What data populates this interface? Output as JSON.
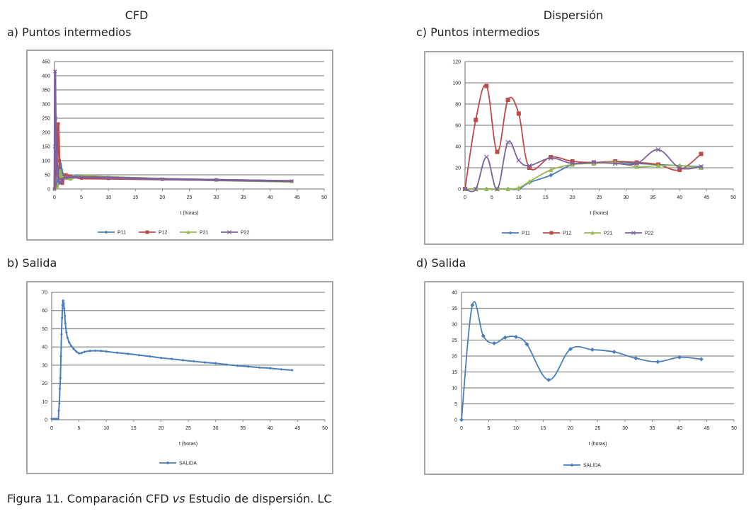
{
  "headers": {
    "cfd": "CFD",
    "dispersion": "Dispersión"
  },
  "caption": {
    "prefix": "Figura 11. Comparación CFD ",
    "italic": "vs",
    "suffix": " Estudio de dispersión. LC"
  },
  "colors": {
    "P11": "#4A7EBB",
    "P12": "#BE4B48",
    "P21": "#98B954",
    "P22": "#7D60A0",
    "SALIDA": "#4A7EBB",
    "grid": "#8c8c8c"
  },
  "chart_data": [
    {
      "id": "a",
      "panel_label": "a) Puntos intermedios",
      "type": "line",
      "xlabel": "t (horas)",
      "xlim": [
        0,
        50
      ],
      "xticks": [
        0,
        5,
        10,
        15,
        20,
        25,
        30,
        35,
        40,
        45,
        50
      ],
      "ylim": [
        0,
        450
      ],
      "yticks": [
        0,
        50,
        100,
        150,
        200,
        250,
        300,
        350,
        400,
        450
      ],
      "grid": true,
      "legend": "bottom",
      "series": [
        {
          "name": "P11",
          "marker": "diamond",
          "points": [
            [
              0,
              0
            ],
            [
              0.5,
              20
            ],
            [
              1,
              90
            ],
            [
              1.3,
              70
            ],
            [
              1.7,
              45
            ],
            [
              2.5,
              40
            ],
            [
              5,
              47
            ],
            [
              10,
              41
            ],
            [
              20,
              35
            ],
            [
              30,
              32
            ],
            [
              44,
              27
            ]
          ]
        },
        {
          "name": "P12",
          "marker": "square",
          "points": [
            [
              0,
              0
            ],
            [
              0.3,
              60
            ],
            [
              0.5,
              150
            ],
            [
              0.7,
              230
            ],
            [
              0.9,
              100
            ],
            [
              1.2,
              40
            ],
            [
              1.5,
              20
            ],
            [
              2,
              50
            ],
            [
              3,
              45
            ],
            [
              5,
              38
            ],
            [
              10,
              37
            ],
            [
              20,
              34
            ],
            [
              30,
              32
            ],
            [
              44,
              27
            ]
          ]
        },
        {
          "name": "P21",
          "marker": "triangle",
          "points": [
            [
              0,
              0
            ],
            [
              0.6,
              10
            ],
            [
              1,
              65
            ],
            [
              1.3,
              45
            ],
            [
              2,
              38
            ],
            [
              3,
              35
            ],
            [
              5,
              47
            ],
            [
              10,
              42
            ],
            [
              20,
              36
            ],
            [
              30,
              31
            ],
            [
              44,
              26
            ]
          ]
        },
        {
          "name": "P22",
          "marker": "x",
          "points": [
            [
              0,
              0
            ],
            [
              0.05,
              150
            ],
            [
              0.1,
              415
            ],
            [
              0.2,
              250
            ],
            [
              0.4,
              120
            ],
            [
              0.6,
              60
            ],
            [
              0.8,
              30
            ],
            [
              1,
              20
            ],
            [
              1.5,
              30
            ],
            [
              2,
              40
            ],
            [
              5,
              42
            ],
            [
              10,
              40
            ],
            [
              20,
              35
            ],
            [
              30,
              32
            ],
            [
              44,
              28
            ]
          ]
        }
      ]
    },
    {
      "id": "b",
      "panel_label": "b) Salida",
      "type": "line",
      "xlabel": "t (horas)",
      "xlim": [
        0,
        50
      ],
      "xticks": [
        0,
        5,
        10,
        15,
        20,
        25,
        30,
        35,
        40,
        45,
        50
      ],
      "ylim": [
        0,
        70
      ],
      "yticks": [
        0,
        10,
        20,
        30,
        40,
        50,
        60,
        70
      ],
      "grid": true,
      "legend": "bottom",
      "series": [
        {
          "name": "SALIDA",
          "marker": "diamond",
          "points": [
            [
              0,
              0.5
            ],
            [
              0.4,
              0.5
            ],
            [
              0.8,
              0.5
            ],
            [
              1.2,
              0.5
            ],
            [
              1.3,
              5
            ],
            [
              1.4,
              9
            ],
            [
              1.5,
              17
            ],
            [
              1.6,
              23
            ],
            [
              1.7,
              35
            ],
            [
              1.8,
              47
            ],
            [
              1.9,
              56
            ],
            [
              2.0,
              63
            ],
            [
              2.1,
              65.5
            ],
            [
              2.2,
              64
            ],
            [
              2.3,
              61
            ],
            [
              2.4,
              57
            ],
            [
              2.5,
              53
            ],
            [
              2.7,
              48
            ],
            [
              2.9,
              45
            ],
            [
              3.2,
              42.5
            ],
            [
              3.6,
              40.5
            ],
            [
              4,
              39
            ],
            [
              4.5,
              37.5
            ],
            [
              5,
              36.5
            ],
            [
              5.5,
              36.7
            ],
            [
              6,
              37.3
            ],
            [
              7,
              37.8
            ],
            [
              8,
              37.9
            ],
            [
              9,
              37.8
            ],
            [
              10,
              37.5
            ],
            [
              12,
              36.8
            ],
            [
              14,
              36.2
            ],
            [
              16,
              35.5
            ],
            [
              18,
              34.8
            ],
            [
              20,
              34
            ],
            [
              22,
              33.4
            ],
            [
              24,
              32.7
            ],
            [
              26,
              32.1
            ],
            [
              28,
              31.5
            ],
            [
              30,
              31
            ],
            [
              32,
              30.3
            ],
            [
              34,
              29.7
            ],
            [
              36,
              29.2
            ],
            [
              38,
              28.7
            ],
            [
              40,
              28.3
            ],
            [
              42,
              27.7
            ],
            [
              44,
              27.2
            ]
          ]
        }
      ]
    },
    {
      "id": "c",
      "panel_label": "c) Puntos intermedios",
      "type": "line",
      "xlabel": "t (horas)",
      "xlim": [
        0,
        50
      ],
      "xticks": [
        0,
        5,
        10,
        15,
        20,
        25,
        30,
        35,
        40,
        45,
        50
      ],
      "ylim": [
        0,
        120
      ],
      "yticks": [
        0,
        20,
        40,
        60,
        80,
        100,
        120
      ],
      "grid": true,
      "legend": "bottom",
      "x": [
        0,
        2,
        4,
        6,
        8,
        10,
        12,
        16,
        20,
        24,
        28,
        32,
        36,
        40,
        44
      ],
      "series": [
        {
          "name": "P11",
          "marker": "diamond",
          "values": [
            0,
            0,
            0,
            0,
            0,
            0,
            6,
            13,
            23,
            25,
            25,
            24,
            23,
            22,
            21
          ]
        },
        {
          "name": "P12",
          "marker": "square",
          "values": [
            0,
            65,
            97,
            35,
            84,
            71,
            20,
            30,
            26,
            25,
            26,
            25,
            23,
            18,
            33
          ]
        },
        {
          "name": "P21",
          "marker": "triangle",
          "values": [
            0,
            0,
            0,
            0,
            0,
            1,
            7,
            18,
            23,
            24,
            25,
            21,
            22,
            22,
            20
          ]
        },
        {
          "name": "P22",
          "marker": "x",
          "values": [
            0,
            0,
            30,
            0,
            44,
            27,
            22,
            29,
            24,
            25,
            24,
            24,
            37,
            20,
            21
          ]
        }
      ]
    },
    {
      "id": "d",
      "panel_label": "d) Salida",
      "type": "line",
      "xlabel": "t (horas)",
      "xlim": [
        0,
        50
      ],
      "xticks": [
        0,
        5,
        10,
        15,
        20,
        25,
        30,
        35,
        40,
        45,
        50
      ],
      "ylim": [
        0,
        40
      ],
      "yticks": [
        0,
        5,
        10,
        15,
        20,
        25,
        30,
        35,
        40
      ],
      "grid": true,
      "legend": "bottom",
      "x": [
        0,
        2,
        4,
        6,
        8,
        10,
        12,
        16,
        20,
        24,
        28,
        32,
        36,
        40,
        44
      ],
      "series": [
        {
          "name": "SALIDA",
          "marker": "diamond",
          "values": [
            0,
            36,
            26.3,
            24,
            25.8,
            26,
            23.7,
            12.5,
            22.2,
            22,
            21.3,
            19.3,
            18.2,
            19.6,
            19
          ]
        }
      ]
    }
  ]
}
